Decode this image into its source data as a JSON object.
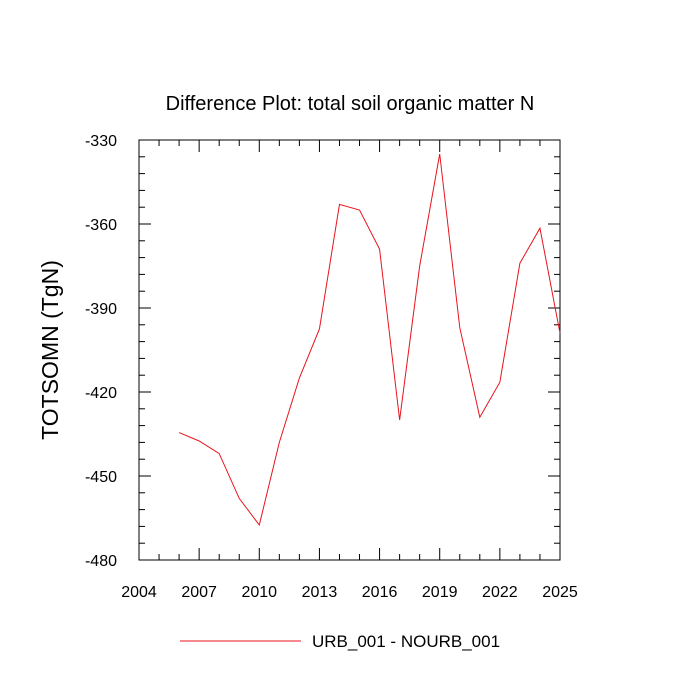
{
  "chart_data": {
    "type": "line",
    "title": "Difference Plot: total soil organic matter N",
    "xlabel": "",
    "ylabel": "TOTSOMN  (TgN)",
    "xlim": [
      2004,
      2025
    ],
    "ylim": [
      -480,
      -330
    ],
    "x_ticks": [
      2004,
      2007,
      2010,
      2013,
      2016,
      2019,
      2022,
      2025
    ],
    "x_minor_step": 1,
    "y_ticks": [
      -330,
      -360,
      -390,
      -420,
      -450,
      -480
    ],
    "y_minor_step": 6,
    "legend_position": "bottom",
    "grid": false,
    "series": [
      {
        "name": "URB_001 - NOURB_001",
        "color": "#e8141d",
        "x": [
          2006,
          2007,
          2008,
          2009,
          2010,
          2011,
          2012,
          2013,
          2014,
          2015,
          2016,
          2017,
          2018,
          2019,
          2020,
          2021,
          2022,
          2023,
          2024,
          2025
        ],
        "y": [
          -434.5,
          -437.5,
          -442,
          -458,
          -467.5,
          -438,
          -415,
          -397.5,
          -353,
          -355,
          -369,
          -430,
          -375,
          -335,
          -397,
          -429,
          -416.5,
          -374,
          -361.5,
          -399
        ]
      }
    ]
  }
}
